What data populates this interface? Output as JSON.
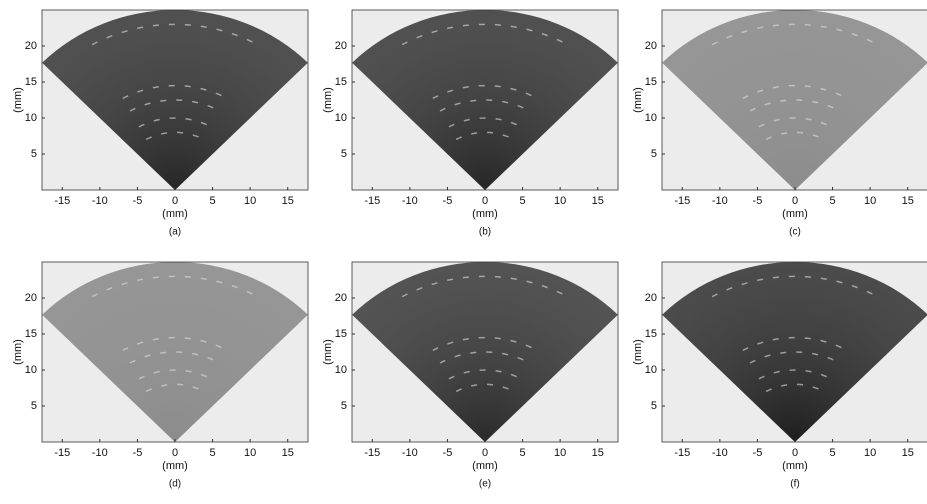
{
  "chart_data": [
    {
      "type": "image",
      "color": "#262626",
      "xlabel": "(mm)",
      "ylabel": "(mm)",
      "caption": "(a)",
      "xlim": [
        -17.7,
        17.7
      ],
      "ylim": [
        0,
        25
      ],
      "xticks": [
        -15,
        -10,
        -5,
        0,
        5,
        10,
        15
      ],
      "yticks": [
        5,
        10,
        15,
        20
      ]
    },
    {
      "type": "image",
      "color": "#262626",
      "xlabel": "(mm)",
      "ylabel": "(mm)",
      "caption": "(b)",
      "xlim": [
        -17.7,
        17.7
      ],
      "ylim": [
        0,
        25
      ],
      "xticks": [
        -15,
        -10,
        -5,
        0,
        5,
        10,
        15
      ],
      "yticks": [
        5,
        10,
        15,
        20
      ]
    },
    {
      "type": "image",
      "color": "#8c8c8c",
      "xlabel": "(mm)",
      "ylabel": "(mm)",
      "caption": "(c)",
      "xlim": [
        -17.7,
        17.7
      ],
      "ylim": [
        0,
        25
      ],
      "xticks": [
        -15,
        -10,
        -5,
        0,
        5,
        10,
        15
      ],
      "yticks": [
        5,
        10,
        15,
        20
      ]
    },
    {
      "type": "image",
      "color": "#8c8c8c",
      "xlabel": "(mm)",
      "ylabel": "(mm)",
      "caption": "(d)",
      "xlim": [
        -17.7,
        17.7
      ],
      "ylim": [
        0,
        25
      ],
      "xticks": [
        -15,
        -10,
        -5,
        0,
        5,
        10,
        15
      ],
      "yticks": [
        5,
        10,
        15,
        20
      ]
    },
    {
      "type": "image",
      "color": "#2a2a2a",
      "xlabel": "(mm)",
      "ylabel": "(mm)",
      "caption": "(e)",
      "xlim": [
        -17.7,
        17.7
      ],
      "ylim": [
        0,
        25
      ],
      "xticks": [
        -15,
        -10,
        -5,
        0,
        5,
        10,
        15
      ],
      "yticks": [
        5,
        10,
        15,
        20
      ]
    },
    {
      "type": "image",
      "color": "#1e1e1e",
      "xlabel": "(mm)",
      "ylabel": "(mm)",
      "caption": "(f)",
      "xlim": [
        -17.7,
        17.7
      ],
      "ylim": [
        0,
        25
      ],
      "xticks": [
        -15,
        -10,
        -5,
        0,
        5,
        10,
        15
      ],
      "yticks": [
        5,
        10,
        15,
        20
      ]
    }
  ]
}
